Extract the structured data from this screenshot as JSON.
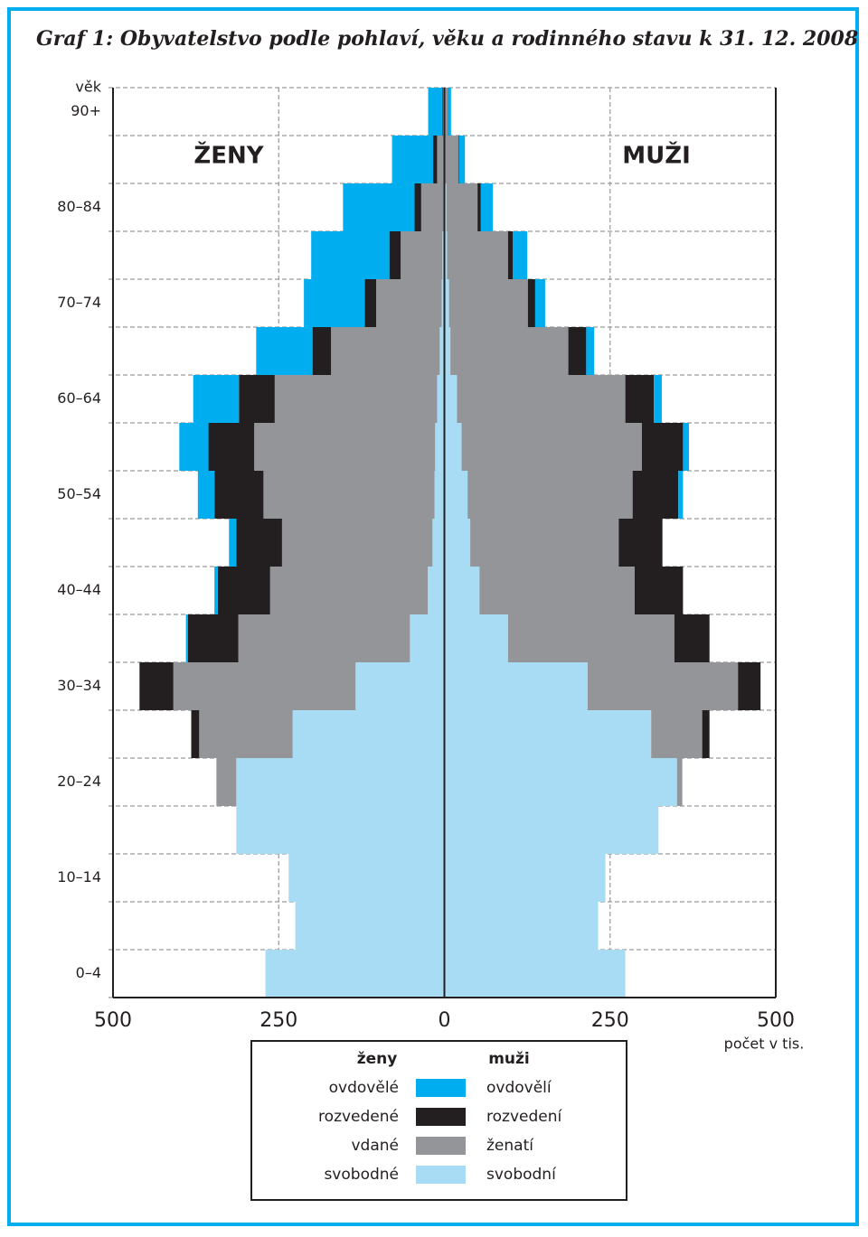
{
  "chart_data": {
    "type": "pyramid",
    "title": "Graf 1: Obyvatelstvo podle pohlaví, věku a rodinného stavu k 31. 12. 2008",
    "y_label": "věk",
    "x_label": "počet v tis.",
    "categories": [
      "0–4",
      null,
      "10–14",
      null,
      "20–24",
      null,
      "30–34",
      null,
      "40–44",
      null,
      "50–54",
      null,
      "60–64",
      null,
      "70–74",
      null,
      "80–84",
      null,
      "90+"
    ],
    "xlim": [
      -500,
      500
    ],
    "xticks": [
      {
        "value": -500,
        "label": "500"
      },
      {
        "value": -250,
        "label": "250"
      },
      0,
      250,
      500
    ],
    "grid": true,
    "groups": [
      {
        "name": "ženy",
        "label": "ŽENY",
        "series": [
          {
            "name": "ovdovělé",
            "color": "#00aeef",
            "values": [
              0,
              0,
              0,
              0,
              0,
              0,
              0,
              3,
              5,
              11,
              25,
              44,
              69,
              85,
              92,
              118,
              108,
              62,
              21
            ]
          },
          {
            "name": "rozvedené",
            "color": "#231f20",
            "values": [
              0,
              0,
              0,
              0,
              0,
              12,
              51,
              76,
              79,
              69,
              74,
              69,
              54,
              28,
              17,
              17,
              10,
              6,
              1
            ]
          },
          {
            "name": "vdané",
            "color": "#939598",
            "values": [
              0,
              0,
              0,
              0,
              30,
              141,
              275,
              259,
              238,
              227,
              258,
              273,
              245,
              164,
              99,
              63,
              34,
              10,
              2
            ]
          },
          {
            "name": "svobodné",
            "color": "#a8dcf5",
            "values": [
              270,
              225,
              235,
              314,
              314,
              229,
              134,
              52,
              25,
              18,
              15,
              14,
              11,
              7,
              4,
              3,
              1,
              1,
              0.5
            ]
          }
        ]
      },
      {
        "name": "muži",
        "label": "MUŽI",
        "series": [
          {
            "name": "ovdovělí",
            "color": "#00aeef",
            "values": [
              0,
              0,
              0,
              0,
              0,
              0,
              0,
              0,
              0,
              0,
              7,
              9,
              12,
              12,
              15,
              22,
              18,
              9,
              4
            ]
          },
          {
            "name": "rozvedení",
            "color": "#231f20",
            "values": [
              0,
              0,
              0,
              0,
              0,
              11,
              34,
              53,
              73,
              66,
              69,
              62,
              43,
              27,
              11,
              7,
              5,
              1,
              0.5
            ]
          },
          {
            "name": "ženatí",
            "color": "#939598",
            "values": [
              0,
              0,
              0,
              0,
              8,
              77,
              227,
              251,
              234,
              224,
              249,
              272,
              254,
              178,
              119,
              92,
              47,
              20,
              5
            ]
          },
          {
            "name": "svobodní",
            "color": "#a8dcf5",
            "values": [
              273,
              232,
              243,
              323,
              351,
              312,
              216,
              96,
              53,
              39,
              35,
              26,
              19,
              9,
              7,
              4,
              3,
              1,
              0.5
            ]
          }
        ]
      }
    ]
  }
}
